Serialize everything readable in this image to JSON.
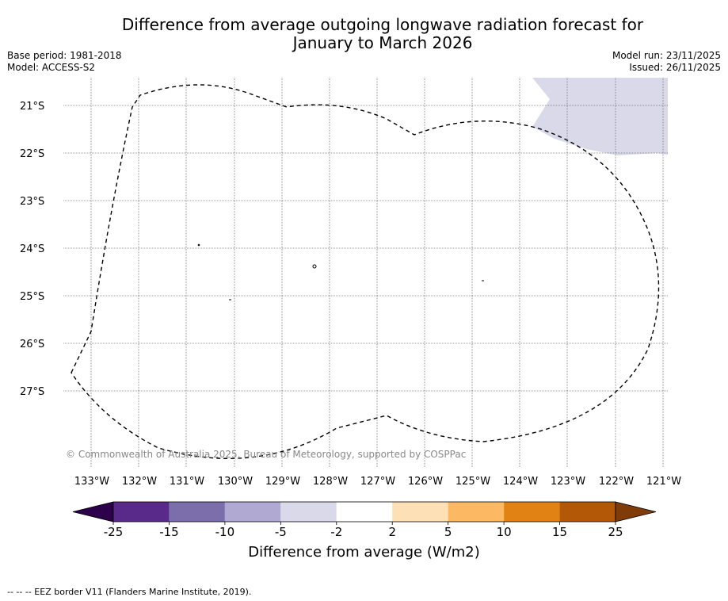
{
  "title_line1": "Difference from average outgoing longwave radiation forecast for",
  "title_line2": "January to March 2026",
  "base_period": "Base period: 1981-2018",
  "model": "Model: ACCESS-S2",
  "model_run": "Model run: 23/11/2025",
  "issued": "Issued: 26/11/2025",
  "copyright": "© Commonwealth of Australia 2025, Bureau of Meteorology, supported by COSPPac",
  "lat_labels": [
    "21°S",
    "22°S",
    "23°S",
    "24°S",
    "25°S",
    "26°S",
    "27°S"
  ],
  "lon_labels": [
    "133°W",
    "132°W",
    "131°W",
    "130°W",
    "129°W",
    "128°W",
    "127°W",
    "126°W",
    "125°W",
    "124°W",
    "123°W",
    "122°W",
    "121°W"
  ],
  "colorbar": {
    "title": "Difference from average (W/m2)",
    "ticks": [
      "-25",
      "-15",
      "-10",
      "-5",
      "-2",
      "2",
      "5",
      "10",
      "15",
      "25"
    ],
    "colors": [
      "#592a8a",
      "#7c6eaa",
      "#b0a9d1",
      "#d9d9ea",
      "#ffffff",
      "#fde0b5",
      "#fdb863",
      "#e08214",
      "#b35806"
    ],
    "under_color": "#2d004b",
    "over_color": "#7f3b08"
  },
  "footnote": "--  --  -- EEZ border V11 (Flanders Marine Institute, 2019)."
}
